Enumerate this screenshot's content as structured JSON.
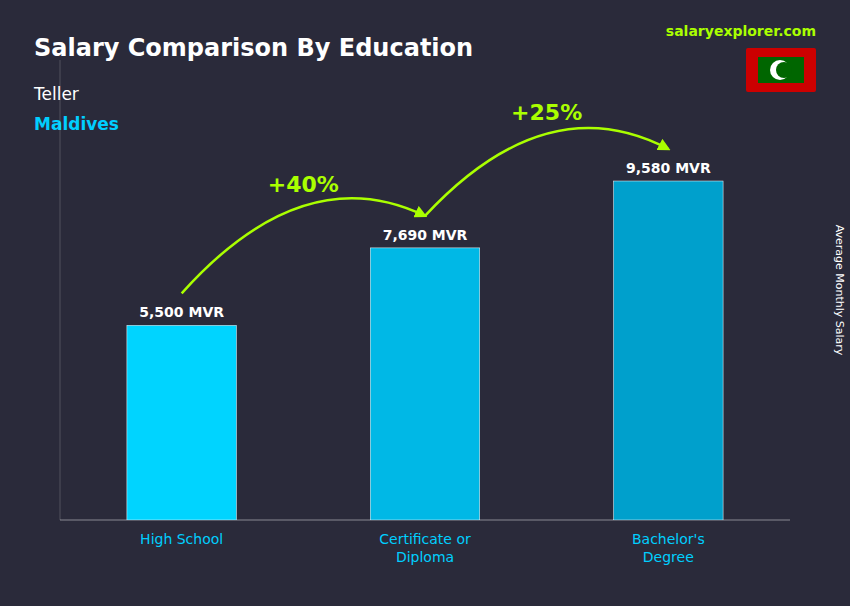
{
  "chart_data": {
    "type": "bar",
    "title": "Salary Comparison By Education",
    "subtitle": [
      "Teller",
      "Maldives"
    ],
    "watermark": "salaryexplorer.com",
    "y_label": "Average Monthly Salary",
    "categories": [
      "High School",
      "Certificate or\nDiploma",
      "Bachelor's\nDegree"
    ],
    "values": [
      5500,
      7690,
      9580
    ],
    "value_labels": [
      "5,500 MVR",
      "7,690 MVR",
      "9,580 MVR"
    ],
    "data_labels": true,
    "colors": [
      "#00d4ff",
      "#00b8e6",
      "#00a0cc"
    ],
    "annotations": [
      "+40%",
      "+25%"
    ],
    "ylim": [
      0,
      13000
    ],
    "tick_labels": "x",
    "grid": false
  }
}
